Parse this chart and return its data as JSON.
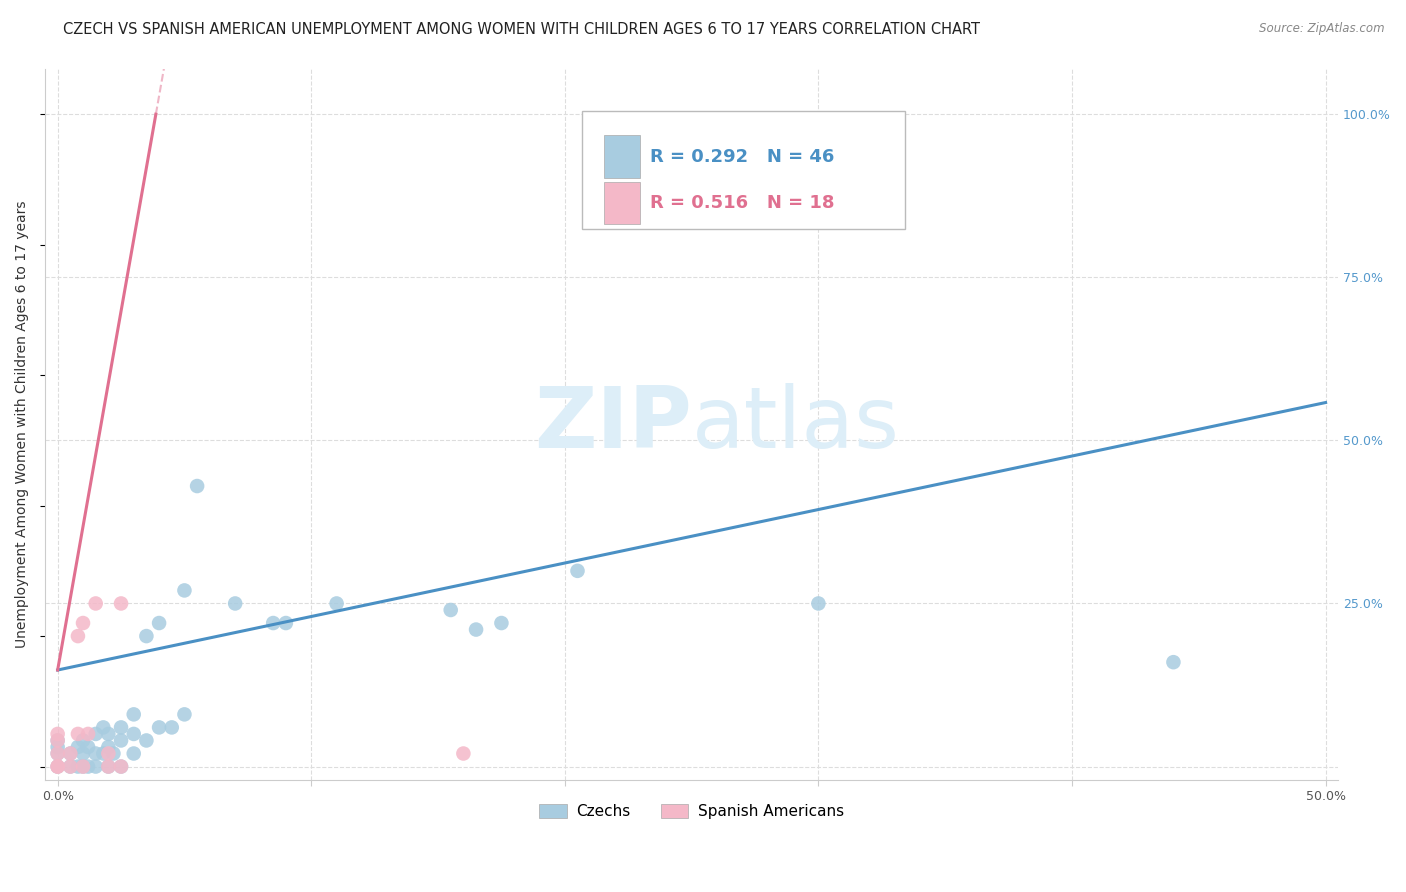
{
  "title": "CZECH VS SPANISH AMERICAN UNEMPLOYMENT AMONG WOMEN WITH CHILDREN AGES 6 TO 17 YEARS CORRELATION CHART",
  "source": "Source: ZipAtlas.com",
  "ylabel": "Unemployment Among Women with Children Ages 6 to 17 years",
  "xlim": [
    -0.005,
    0.505
  ],
  "ylim": [
    -0.02,
    1.07
  ],
  "x_ticks": [
    0.0,
    0.1,
    0.2,
    0.3,
    0.4,
    0.5
  ],
  "x_tick_labels_show": [
    "0.0%",
    "50.0%"
  ],
  "x_tick_labels_pos": [
    0.0,
    0.5
  ],
  "y_tick_labels_right": [
    "100.0%",
    "75.0%",
    "50.0%",
    "25.0%"
  ],
  "y_ticks_right": [
    1.0,
    0.75,
    0.5,
    0.25
  ],
  "legend_blue_R": "R = 0.292",
  "legend_blue_N": "N = 46",
  "legend_pink_R": "R = 0.516",
  "legend_pink_N": "N = 18",
  "blue_scatter_color": "#a8cce0",
  "pink_scatter_color": "#f4b8c8",
  "blue_line_color": "#4a90c4",
  "pink_line_color": "#e07090",
  "watermark_color": "#ddeef8",
  "background_color": "#ffffff",
  "grid_color": "#dddddd",
  "blue_intercept": 0.148,
  "blue_slope": 0.82,
  "pink_intercept": 0.148,
  "pink_slope": 22.0,
  "czechs_x": [
    0.0,
    0.0,
    0.0,
    0.0,
    0.005,
    0.005,
    0.008,
    0.008,
    0.01,
    0.01,
    0.01,
    0.012,
    0.012,
    0.015,
    0.015,
    0.015,
    0.018,
    0.018,
    0.02,
    0.02,
    0.02,
    0.022,
    0.025,
    0.025,
    0.025,
    0.03,
    0.03,
    0.03,
    0.035,
    0.035,
    0.04,
    0.04,
    0.045,
    0.05,
    0.05,
    0.055,
    0.07,
    0.085,
    0.09,
    0.11,
    0.155,
    0.165,
    0.175,
    0.205,
    0.3,
    0.44
  ],
  "czechs_y": [
    0.0,
    0.02,
    0.03,
    0.04,
    0.0,
    0.02,
    0.0,
    0.03,
    0.0,
    0.02,
    0.04,
    0.0,
    0.03,
    0.0,
    0.02,
    0.05,
    0.02,
    0.06,
    0.0,
    0.03,
    0.05,
    0.02,
    0.0,
    0.04,
    0.06,
    0.02,
    0.05,
    0.08,
    0.04,
    0.2,
    0.06,
    0.22,
    0.06,
    0.08,
    0.27,
    0.43,
    0.25,
    0.22,
    0.22,
    0.25,
    0.24,
    0.21,
    0.22,
    0.3,
    0.25,
    0.16
  ],
  "spanish_x": [
    0.0,
    0.0,
    0.0,
    0.0,
    0.0,
    0.005,
    0.005,
    0.008,
    0.008,
    0.01,
    0.01,
    0.012,
    0.015,
    0.02,
    0.02,
    0.025,
    0.16,
    0.025
  ],
  "spanish_y": [
    0.0,
    0.0,
    0.02,
    0.04,
    0.05,
    0.0,
    0.02,
    0.05,
    0.2,
    0.0,
    0.22,
    0.05,
    0.25,
    0.0,
    0.02,
    0.25,
    0.02,
    0.0
  ],
  "title_fontsize": 10.5,
  "axis_label_fontsize": 10,
  "tick_fontsize": 9,
  "legend_fontsize": 13
}
